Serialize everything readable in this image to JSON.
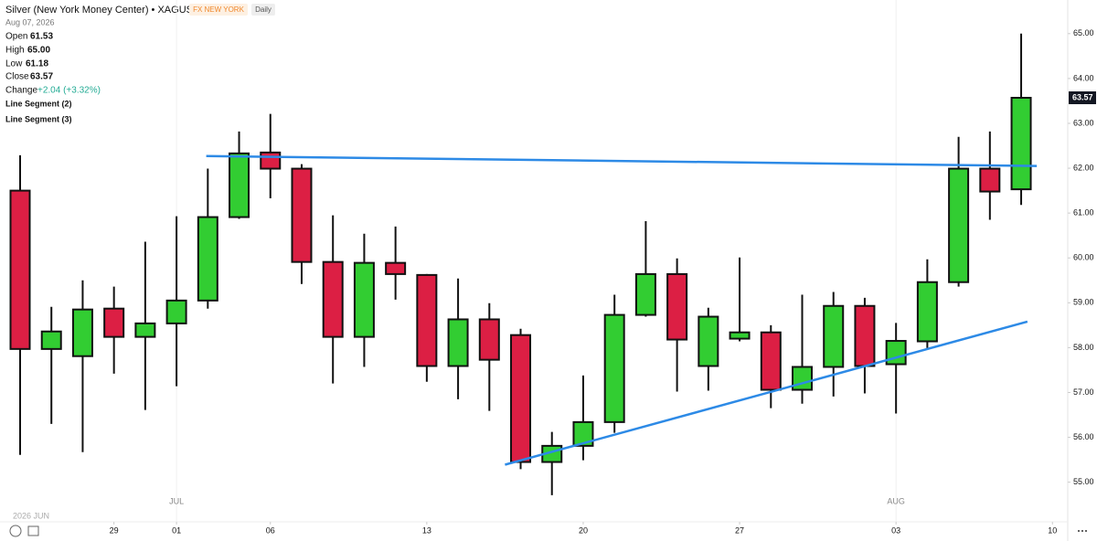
{
  "chart_data": {
    "type": "candlestick",
    "title": "Silver (New York Money Center) • XAGUSD",
    "exchange": "FX NEW YORK",
    "interval": "Daily",
    "date": "Aug 07, 2026",
    "legend": {
      "open_label": "Open",
      "open": "61.53",
      "high_label": "High",
      "high": "65.00",
      "low_label": "Low",
      "low": "61.18",
      "close_label": "Close",
      "close": "63.57",
      "change_label": "Change",
      "change": "+2.04 (+3.32%)"
    },
    "drawings": [
      {
        "name": "Line Segment (2)",
        "color": "#2d8ae6",
        "x": [
          5.95,
          32.5
        ],
        "y": [
          62.27,
          62.05
        ]
      },
      {
        "name": "Line Segment (3)",
        "color": "#2d8ae6",
        "x": [
          15.5,
          32.2
        ],
        "y": [
          55.39,
          58.58
        ]
      }
    ],
    "up_color": "#32cd32",
    "down_color": "#dc1f44",
    "open": [
      61.5,
      57.97,
      57.81,
      58.87,
      58.24,
      58.54,
      59.05,
      60.91,
      62.35,
      61.99,
      59.91,
      58.24,
      59.89,
      59.62,
      57.59,
      58.63,
      58.28,
      55.45,
      55.81,
      56.34,
      58.73,
      59.64,
      57.59,
      58.2,
      58.34,
      57.06,
      57.57,
      58.93,
      57.63,
      58.14,
      59.46,
      61.99,
      61.53
    ],
    "high": [
      62.29,
      58.91,
      59.5,
      59.36,
      60.36,
      60.93,
      61.99,
      62.82,
      63.21,
      62.09,
      60.95,
      60.54,
      60.7,
      59.64,
      59.54,
      58.99,
      58.42,
      56.12,
      57.38,
      59.18,
      60.82,
      59.99,
      58.89,
      60.01,
      58.5,
      59.18,
      59.24,
      59.11,
      58.55,
      59.97,
      62.7,
      62.82,
      65.0
    ],
    "low": [
      55.61,
      56.3,
      55.67,
      57.42,
      56.61,
      57.14,
      58.87,
      60.87,
      61.33,
      59.42,
      57.2,
      57.57,
      59.07,
      57.24,
      56.85,
      56.59,
      55.29,
      54.71,
      55.49,
      56.1,
      58.69,
      57.02,
      57.04,
      58.14,
      56.65,
      56.75,
      56.91,
      56.98,
      56.53,
      57.99,
      59.36,
      60.85,
      61.18
    ],
    "close": [
      57.97,
      58.36,
      58.85,
      58.24,
      58.54,
      59.05,
      60.91,
      62.33,
      61.99,
      59.91,
      58.24,
      59.89,
      59.64,
      57.59,
      58.63,
      57.73,
      55.45,
      55.81,
      56.34,
      58.73,
      59.64,
      58.18,
      58.69,
      58.34,
      57.06,
      57.57,
      58.93,
      57.59,
      58.15,
      59.46,
      61.99,
      61.48,
      63.57
    ],
    "last_price": {
      "value": 63.57,
      "label": "63.57"
    },
    "ylim": [
      54.3,
      65.75
    ],
    "yticks": [
      {
        "value": 55,
        "label": "55.00"
      },
      {
        "value": 56,
        "label": "56.00"
      },
      {
        "value": 57,
        "label": "57.00"
      },
      {
        "value": 58,
        "label": "58.00"
      },
      {
        "value": 59,
        "label": "59.00"
      },
      {
        "value": 60,
        "label": "60.00"
      },
      {
        "value": 61,
        "label": "61.00"
      },
      {
        "value": 62,
        "label": "62.00"
      },
      {
        "value": 63,
        "label": "63.00"
      },
      {
        "value": 64,
        "label": "64.00"
      },
      {
        "value": 65,
        "label": "65.00"
      }
    ],
    "xticks": [
      {
        "value": 3,
        "label": "29"
      },
      {
        "value": 5,
        "label": "01"
      },
      {
        "value": 8,
        "label": "06"
      },
      {
        "value": 13,
        "label": "13"
      },
      {
        "value": 18,
        "label": "20"
      },
      {
        "value": 23,
        "label": "27"
      },
      {
        "value": 28,
        "label": "03"
      },
      {
        "value": 33,
        "label": "10"
      }
    ],
    "month_ticks": [
      {
        "value": 5,
        "label": "JUL"
      },
      {
        "value": 28,
        "label": "AUG"
      }
    ],
    "x_start_label": "2026 JUN"
  }
}
